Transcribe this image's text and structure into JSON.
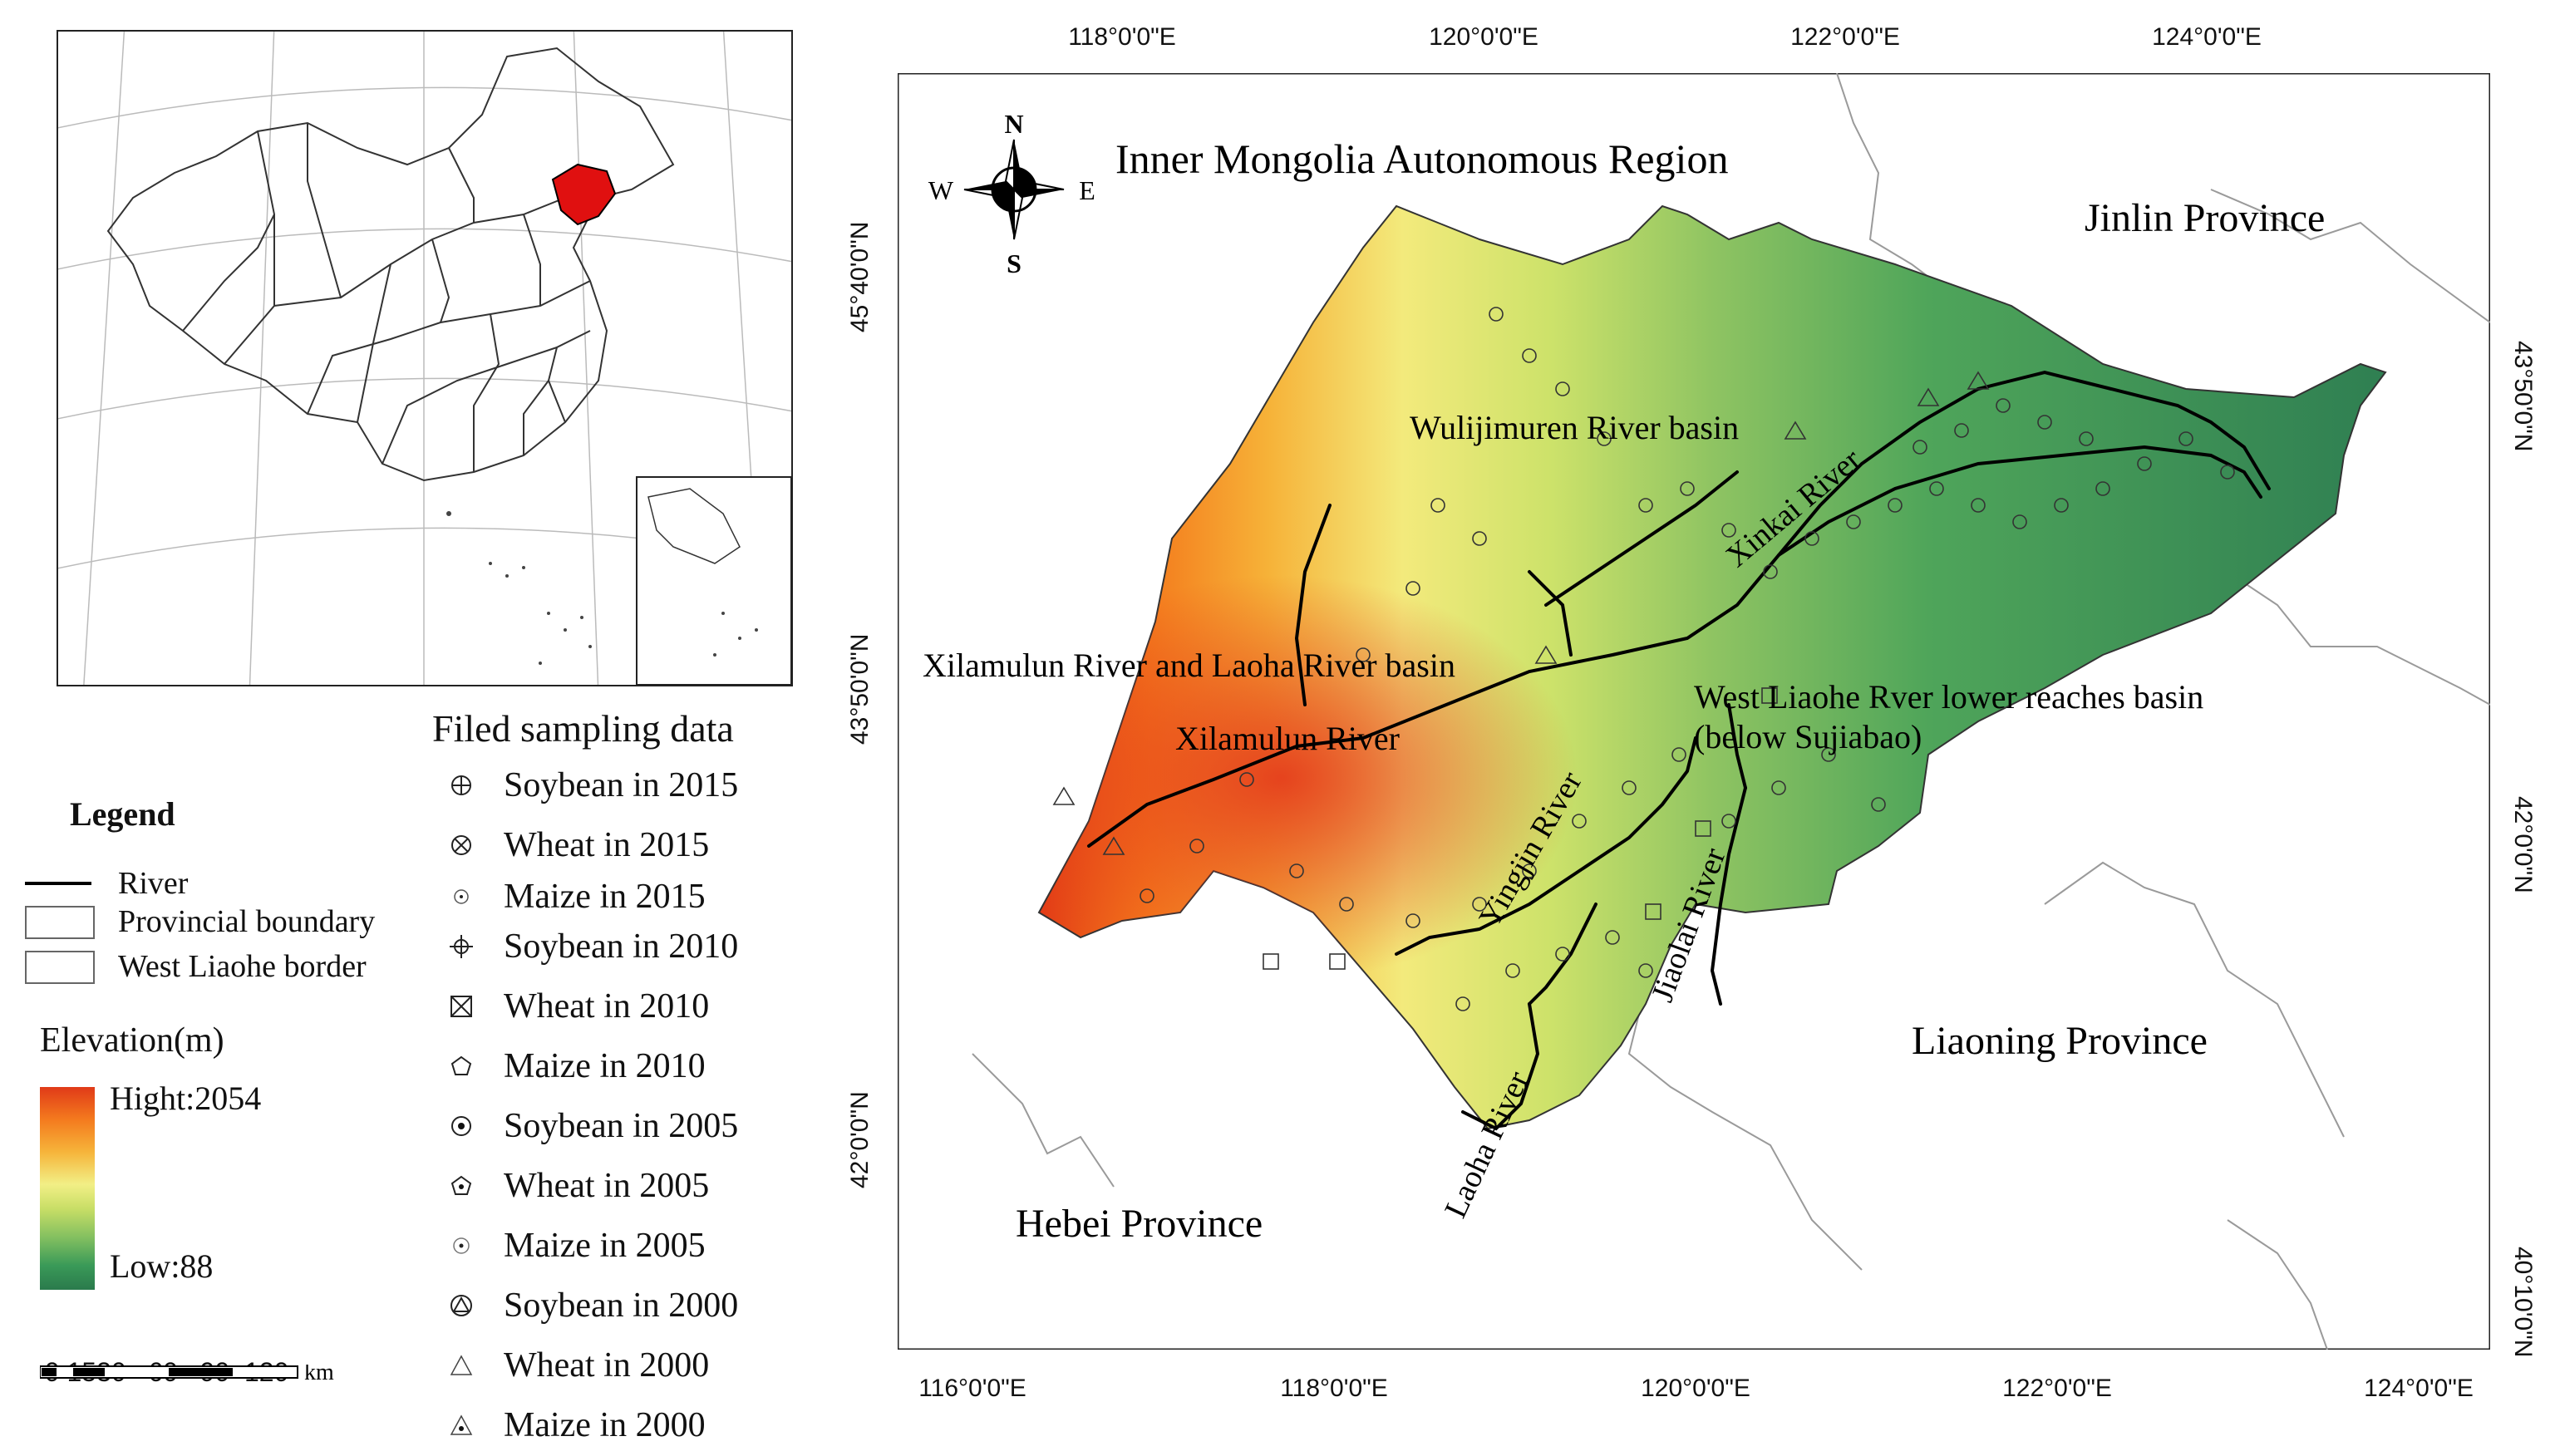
{
  "inset": {
    "highlight_color": "#e01010"
  },
  "legend": {
    "title": "Legend",
    "items": [
      {
        "label": "River",
        "icon": "river-line-icon"
      },
      {
        "label": "Provincial boundary",
        "icon": "provincial-boundary-box-icon"
      },
      {
        "label": "West Liaohe border",
        "icon": "west-liaohe-border-box-icon"
      }
    ]
  },
  "elevation": {
    "title": "Elevation(m)",
    "high": "Hight:2054",
    "low": "Low:88",
    "colors": [
      "#e03a18",
      "#f6b43a",
      "#f2ef86",
      "#84c060",
      "#2a7a4c"
    ]
  },
  "scale": {
    "ticks": "0 1530   60   90  120",
    "unit": "km"
  },
  "sampling": {
    "title": "Filed sampling data",
    "items": [
      {
        "label": "Soybean in 2015",
        "icon": "circle-plus-icon"
      },
      {
        "label": "Wheat in 2015",
        "icon": "circle-x-icon"
      },
      {
        "label": "Maize in 2015",
        "icon": "circle-dot-icon"
      },
      {
        "label": "Soybean in 2010",
        "icon": "crosshair-icon"
      },
      {
        "label": "Wheat in 2010",
        "icon": "box-x-icon"
      },
      {
        "label": "Maize in 2010",
        "icon": "pentagon-icon"
      },
      {
        "label": "Soybean in 2005",
        "icon": "circle-bold-dot-icon"
      },
      {
        "label": "Wheat in 2005",
        "icon": "pentagon-dot-icon"
      },
      {
        "label": "Maize in 2005",
        "icon": "small-circle-dot-icon"
      },
      {
        "label": "Soybean in 2000",
        "icon": "circle-triangle-icon"
      },
      {
        "label": "Wheat in 2000",
        "icon": "triangle-icon"
      },
      {
        "label": "Maize in 2000",
        "icon": "triangle-dot-icon"
      }
    ]
  },
  "map": {
    "top_ticks": [
      "118°0'0\"E",
      "120°0'0\"E",
      "122°0'0\"E",
      "124°0'0\"E"
    ],
    "bottom_ticks": [
      "116°0'0\"E",
      "118°0'0\"E",
      "120°0'0\"E",
      "122°0'0\"E",
      "124°0'0\"E"
    ],
    "left_ticks": [
      "45°40'0\"N",
      "43°50'0\"N",
      "42°0'0\"N"
    ],
    "right_ticks": [
      "43°50'0\"N",
      "42°0'0\"N",
      "40°10'0\"N"
    ],
    "regions": {
      "inner_mongolia": "Inner Mongolia Autonomous Region",
      "jilin": "Jinlin Province",
      "liaoning": "Liaoning Province",
      "hebei": "Hebei Province"
    },
    "basins": {
      "wulijimuren": "Wulijimuren River basin",
      "xilamulun_laoha": "Xilamulun River and Laoha River basin",
      "lower_reaches_1": "West Liaohe Rver lower reaches basin",
      "lower_reaches_2": "(below Sujiabao)"
    },
    "rivers": {
      "xilamulun": "Xilamulun River",
      "xinkai": "Xinkai River",
      "yingjin": "Yingjin River",
      "jiaolai": "Jiaolai River",
      "laoha": "Laoha River"
    },
    "compass": {
      "n": "N",
      "s": "S",
      "e": "E",
      "w": "W"
    }
  }
}
